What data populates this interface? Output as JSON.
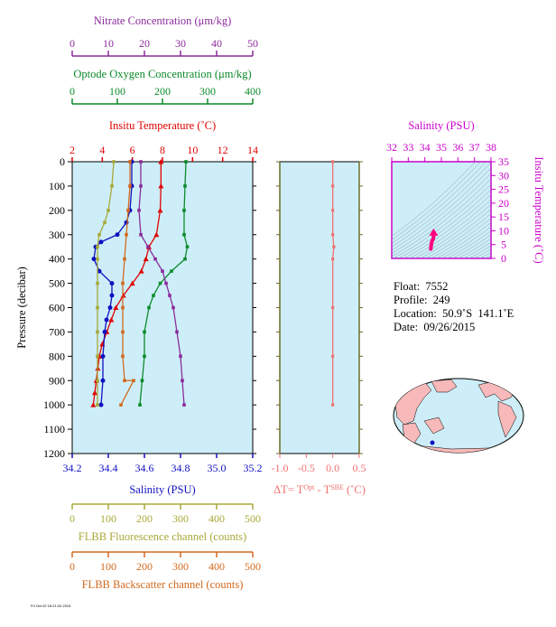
{
  "info": {
    "float_label": "Float:",
    "float": "7552",
    "profile_label": "Profile:",
    "profile": "249",
    "location_label": "Location:",
    "location": "50.9˚S  141.1˚E",
    "date_label": "Date:",
    "date": "09/26/2015"
  },
  "stamp": "Fri Oct 02 16:21:04 2015",
  "colors": {
    "nitrate": "#8b2b9b",
    "oxygen": "#0c8a2a",
    "temperature": "#e00000",
    "salinity": "#1010c0",
    "fluorescence": "#a8a83a",
    "backscatter": "#d2691e",
    "delta_t": "#f07070",
    "plot_bg": "#cdeef8",
    "ts_frame": "#cc00cc",
    "ts_arrow": "#ff0080"
  },
  "chart_data": [
    {
      "type": "line",
      "ylabel": "Pressure (decibar)",
      "ylim": [
        0,
        1200
      ],
      "y_ticks": [
        0,
        100,
        200,
        300,
        400,
        500,
        600,
        700,
        800,
        900,
        1000,
        1100,
        1200
      ],
      "axes": {
        "nitrate": {
          "label": "Nitrate Concentration (μm/kg)",
          "lim": [
            0,
            50
          ],
          "ticks": [
            0,
            10,
            20,
            30,
            40,
            50
          ]
        },
        "oxygen": {
          "label": "Optode Oxygen Concentration (μm/kg)",
          "lim": [
            0,
            400
          ],
          "ticks": [
            0,
            100,
            200,
            300,
            400
          ]
        },
        "temperature": {
          "label": "Insitu Temperature (˚C)",
          "lim": [
            2,
            14
          ],
          "ticks": [
            2,
            4,
            6,
            8,
            10,
            12,
            14
          ]
        },
        "salinity": {
          "label": "Salinity (PSU)",
          "lim": [
            34.2,
            35.2
          ],
          "ticks": [
            "34.2",
            "34.4",
            "34.6",
            "34.8",
            "35.0",
            "35.2"
          ]
        },
        "fluorescence": {
          "label": "FLBB Fluorescence channel (counts)",
          "lim": [
            0,
            500
          ],
          "ticks": [
            0,
            100,
            200,
            300,
            400,
            500
          ]
        },
        "backscatter": {
          "label": "FLBB Backscatter channel (counts)",
          "lim": [
            0,
            500
          ],
          "ticks": [
            0,
            100,
            200,
            300,
            400,
            500
          ]
        }
      },
      "series": [
        {
          "key": "temperature",
          "points": [
            [
              7.9,
              0
            ],
            [
              7.9,
              100
            ],
            [
              7.85,
              200
            ],
            [
              7.6,
              300
            ],
            [
              7.1,
              350
            ],
            [
              6.9,
              400
            ],
            [
              6.6,
              450
            ],
            [
              6.0,
              500
            ],
            [
              5.4,
              550
            ],
            [
              4.9,
              600
            ],
            [
              4.6,
              650
            ],
            [
              4.3,
              700
            ],
            [
              4.0,
              750
            ],
            [
              3.8,
              800
            ],
            [
              3.7,
              850
            ],
            [
              3.6,
              900
            ],
            [
              3.5,
              950
            ],
            [
              3.4,
              1000
            ]
          ]
        },
        {
          "key": "salinity",
          "points": [
            [
              34.53,
              0
            ],
            [
              34.53,
              100
            ],
            [
              34.52,
              200
            ],
            [
              34.5,
              250
            ],
            [
              34.45,
              300
            ],
            [
              34.36,
              330
            ],
            [
              34.33,
              350
            ],
            [
              34.32,
              400
            ],
            [
              34.35,
              450
            ],
            [
              34.42,
              500
            ],
            [
              34.42,
              550
            ],
            [
              34.41,
              600
            ],
            [
              34.39,
              650
            ],
            [
              34.38,
              700
            ],
            [
              34.37,
              800
            ],
            [
              34.37,
              900
            ],
            [
              34.36,
              1000
            ]
          ]
        },
        {
          "key": "oxygen",
          "points": [
            [
              252,
              0
            ],
            [
              250,
              100
            ],
            [
              248,
              200
            ],
            [
              248,
              300
            ],
            [
              255,
              350
            ],
            [
              250,
              400
            ],
            [
              220,
              450
            ],
            [
              195,
              500
            ],
            [
              180,
              550
            ],
            [
              170,
              600
            ],
            [
              160,
              700
            ],
            [
              160,
              800
            ],
            [
              155,
              900
            ],
            [
              150,
              1000
            ]
          ]
        },
        {
          "key": "nitrate",
          "points": [
            [
              19,
              0
            ],
            [
              19,
              100
            ],
            [
              18.5,
              200
            ],
            [
              19,
              300
            ],
            [
              21,
              350
            ],
            [
              23,
              400
            ],
            [
              25,
              450
            ],
            [
              26,
              500
            ],
            [
              27,
              550
            ],
            [
              28,
              600
            ],
            [
              29,
              700
            ],
            [
              30,
              800
            ],
            [
              30.5,
              900
            ],
            [
              31,
              1000
            ]
          ]
        },
        {
          "key": "fluorescence",
          "points": [
            [
              115,
              0
            ],
            [
              110,
              100
            ],
            [
              100,
              200
            ],
            [
              90,
              250
            ],
            [
              75,
              300
            ],
            [
              70,
              350
            ],
            [
              70,
              400
            ],
            [
              70,
              500
            ],
            [
              70,
              600
            ],
            [
              70,
              700
            ],
            [
              70,
              800
            ],
            [
              70,
              900
            ],
            [
              70,
              1000
            ]
          ]
        },
        {
          "key": "backscatter",
          "points": [
            [
              160,
              0
            ],
            [
              160,
              100
            ],
            [
              155,
              200
            ],
            [
              150,
              300
            ],
            [
              145,
              400
            ],
            [
              140,
              500
            ],
            [
              140,
              600
            ],
            [
              140,
              700
            ],
            [
              140,
              800
            ],
            [
              145,
              900
            ],
            [
              170,
              900
            ],
            [
              135,
              1000
            ]
          ]
        }
      ]
    },
    {
      "type": "line",
      "xlabel": "ΔT= T",
      "xlabel_sup1": "Opt",
      "xlabel_mid": " - T",
      "xlabel_sup2": "SBE",
      "xlabel_unit": " (˚C)",
      "xlim": [
        -1.0,
        0.5
      ],
      "x_ticks": [
        "-1.0",
        "-0.5",
        "0.0",
        "0.5"
      ],
      "ylim": [
        0,
        1200
      ],
      "series": [
        {
          "key": "delta_t",
          "points": [
            [
              0.0,
              0
            ],
            [
              0.0,
              100
            ],
            [
              0.0,
              200
            ],
            [
              0.0,
              300
            ],
            [
              0.02,
              350
            ],
            [
              0.0,
              400
            ],
            [
              0.0,
              600
            ],
            [
              0.0,
              800
            ],
            [
              0.0,
              1000
            ]
          ]
        }
      ]
    },
    {
      "type": "scatter",
      "xlabel": "Salinity (PSU)",
      "ylabel": "Insitu Temperature (˚C)",
      "xlim": [
        32,
        38
      ],
      "ylim": [
        0,
        35
      ],
      "x_ticks": [
        32,
        33,
        34,
        35,
        36,
        37,
        38
      ],
      "y_ticks": [
        0,
        5,
        10,
        15,
        20,
        25,
        30,
        35
      ],
      "points": [
        [
          34.53,
          7.9
        ],
        [
          34.5,
          7.0
        ],
        [
          34.42,
          6.0
        ],
        [
          34.38,
          4.5
        ],
        [
          34.36,
          3.4
        ]
      ]
    }
  ]
}
